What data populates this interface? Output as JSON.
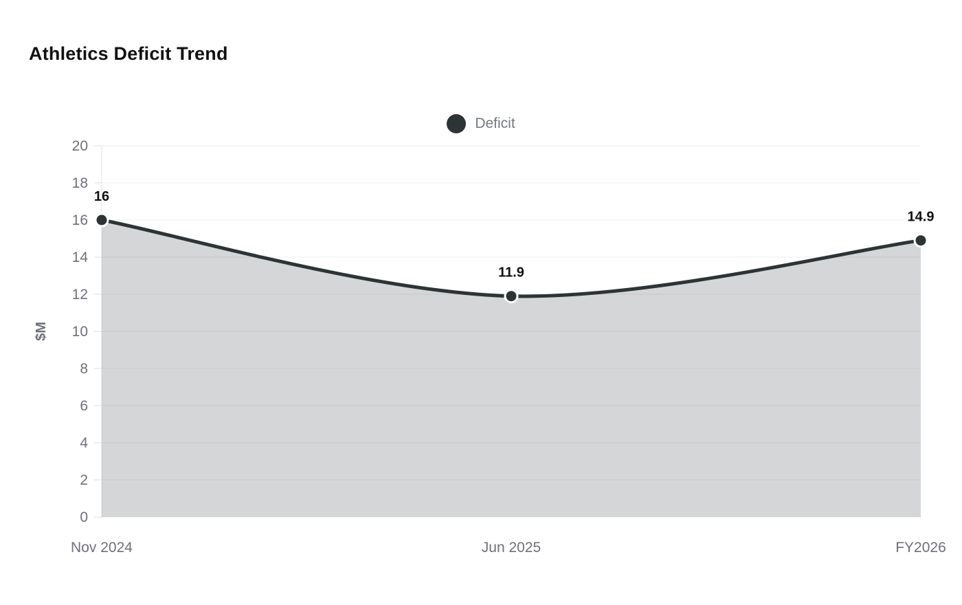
{
  "chart_data": {
    "type": "area",
    "title": "Athletics Deficit Trend",
    "categories": [
      "Nov 2024",
      "Jun 2025",
      "FY2026"
    ],
    "series": [
      {
        "name": "Deficit",
        "values": [
          16,
          11.9,
          14.9
        ],
        "labels": [
          "16",
          "11.9",
          "14.9"
        ],
        "color": "#2d3436",
        "fill_opacity": 0.2,
        "smooth": true,
        "line_width": 5,
        "marker_radius": 9
      }
    ],
    "xlabel": "",
    "ylabel": "$M",
    "ylim": [
      0,
      20
    ],
    "ytick_step": 2,
    "grid": true,
    "legend_position": "top"
  },
  "colors": {
    "background": "#ffffff",
    "title_text": "#111111",
    "axis_label": "#6e7079",
    "legend_text": "#75797f",
    "data_label": "#111111",
    "grid_line": "#efefef",
    "tick_mark": "#dcdcdc",
    "axis_line": "#e2e2e2",
    "marker_border": "#ffffff"
  }
}
